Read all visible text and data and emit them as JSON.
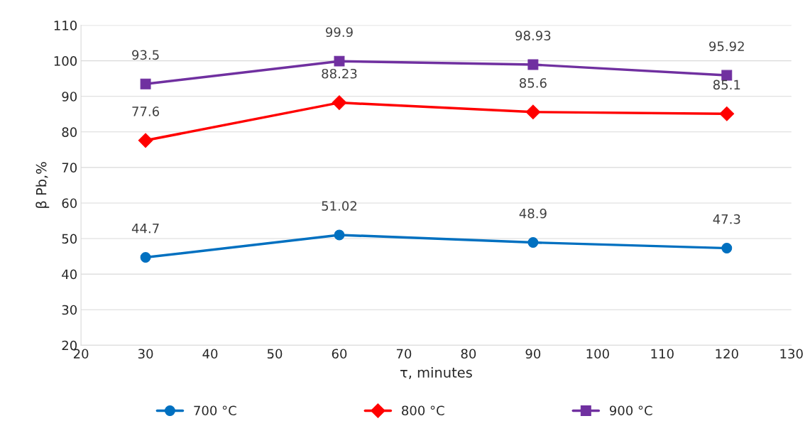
{
  "chart_data": {
    "type": "line",
    "xlabel": "τ, minutes",
    "ylabel": "β Pb,%",
    "x": [
      30,
      60,
      90,
      120
    ],
    "series": [
      {
        "name": "700 °C",
        "color": "#0070c0",
        "marker": "circle",
        "values": [
          44.7,
          51.02,
          48.9,
          47.3
        ]
      },
      {
        "name": "800 °C",
        "color": "#ff0000",
        "marker": "diamond",
        "values": [
          77.6,
          88.23,
          85.6,
          85.1
        ]
      },
      {
        "name": "900 °C",
        "color": "#7030a0",
        "marker": "square",
        "values": [
          93.5,
          99.9,
          98.93,
          95.92
        ]
      }
    ],
    "xlim": [
      20,
      130
    ],
    "xticks": [
      20,
      30,
      40,
      50,
      60,
      70,
      80,
      90,
      100,
      110,
      120,
      130
    ],
    "ylim": [
      20,
      110
    ],
    "yticks": [
      20,
      30,
      40,
      50,
      60,
      70,
      80,
      90,
      100,
      110
    ],
    "grid": "y",
    "legend": "bottom",
    "data_labels": true,
    "line_style": "solid"
  }
}
